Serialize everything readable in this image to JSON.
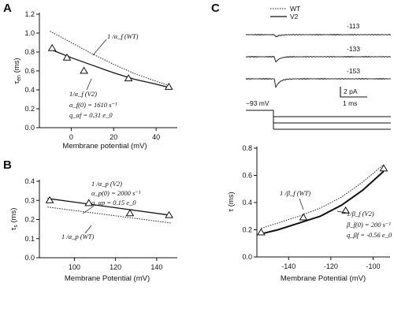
{
  "panels": {
    "A": {
      "letter": "A",
      "chart_data": {
        "type": "line",
        "xlabel": "Membrane potential (mV)",
        "ylabel": "τ_en (ms)",
        "ylabel_main": "τ",
        "ylabel_sub": "en",
        "ylabel_unit": " (ms)",
        "xlim": [
          -15,
          50
        ],
        "ylim": [
          0,
          1.2
        ],
        "xticks": [
          0,
          20,
          40
        ],
        "yticks": [
          0.0,
          0.2,
          0.4,
          0.6,
          0.8,
          1.0,
          1.2
        ],
        "ytick_labels": [
          "0.0",
          "0.2",
          "0.4",
          "0.6",
          "0.8",
          "1.0",
          "1.2"
        ],
        "series": [
          {
            "name": "1/α_f (WT)",
            "style": "dotted",
            "x": [
              -10,
              0,
              10,
              20,
              30,
              40,
              47
            ],
            "y": [
              1.02,
              0.9,
              0.78,
              0.67,
              0.57,
              0.49,
              0.44
            ]
          },
          {
            "name": "1/α_f (V2)",
            "style": "solid",
            "x": [
              -10,
              0,
              10,
              20,
              30,
              40,
              47
            ],
            "y": [
              0.83,
              0.74,
              0.66,
              0.58,
              0.51,
              0.46,
              0.42
            ]
          },
          {
            "name": "data",
            "style": "triangle",
            "x": [
              -9,
              -2,
              6,
              27,
              46
            ],
            "y": [
              0.84,
              0.74,
              0.6,
              0.52,
              0.43
            ]
          }
        ]
      },
      "annotations": {
        "wt": "1 /α_f (WT)",
        "v2": "1/α_f (V2)",
        "alpha0": "α_f(0) = 1610 s⁻¹",
        "q": "q_αf = 0.31 e_0"
      }
    },
    "B": {
      "letter": "B",
      "chart_data": {
        "type": "line",
        "xlabel": "Membrane Potential (mV)",
        "ylabel": "τ_s (ms)",
        "ylabel_main": "τ",
        "ylabel_sub": "s",
        "ylabel_unit": " (ms)",
        "xlim": [
          83,
          150
        ],
        "ylim": [
          0.0,
          0.4
        ],
        "xticks": [
          100,
          120,
          140
        ],
        "yticks": [
          0.0,
          0.1,
          0.2,
          0.3,
          0.4
        ],
        "ytick_labels": [
          "0.0",
          "0.1",
          "0.2",
          "0.3",
          "0.4"
        ],
        "series": [
          {
            "name": "1/α_p (V2)",
            "style": "solid",
            "x": [
              87,
              147
            ],
            "y": [
              0.31,
              0.222
            ]
          },
          {
            "name": "1/α_p (WT)",
            "style": "dotted",
            "x": [
              87,
              147
            ],
            "y": [
              0.265,
              0.182
            ]
          },
          {
            "name": "data",
            "style": "triangle",
            "x": [
              88,
              107,
              127,
              146
            ],
            "y": [
              0.3,
              0.285,
              0.232,
              0.222
            ]
          }
        ]
      },
      "annotations": {
        "v2": "1 /α_p (V2)",
        "alpha0": "α_p(0) = 2000 s⁻¹",
        "q": "q_αp = 0.15 e_0",
        "wt": "1 /α_p (WT)"
      }
    },
    "C": {
      "letter": "C",
      "legend": {
        "wt": "WT",
        "v2": "V2"
      },
      "traces": {
        "labels": [
          "-113",
          "-133",
          "-153"
        ],
        "scale_current": "2 pA",
        "scale_time": "1 ms",
        "holding": "−93 mV"
      },
      "chart_data": {
        "type": "line",
        "xlabel": "Membrane Potential (mV)",
        "ylabel": "τ (ms)",
        "xlim": [
          -155,
          -92
        ],
        "ylim": [
          0.0,
          0.8
        ],
        "xticks": [
          -140,
          -120,
          -100
        ],
        "yticks": [
          0.0,
          0.2,
          0.4,
          0.6,
          0.8
        ],
        "ytick_labels": [
          "0.0",
          "0.2",
          "0.4",
          "0.6",
          "0.8"
        ],
        "series": [
          {
            "name": "1/β_f (WT)",
            "style": "dotted",
            "x": [
              -153,
              -145,
              -135,
              -125,
              -115,
              -105,
              -95
            ],
            "y": [
              0.21,
              0.25,
              0.3,
              0.36,
              0.44,
              0.55,
              0.68
            ]
          },
          {
            "name": "1/β_f (V2)",
            "style": "solid",
            "x": [
              -153,
              -145,
              -135,
              -125,
              -115,
              -105,
              -95
            ],
            "y": [
              0.17,
              0.2,
              0.25,
              0.3,
              0.38,
              0.49,
              0.63
            ]
          },
          {
            "name": "data",
            "style": "triangle",
            "x": [
              -153,
              -133,
              -113,
              -95
            ],
            "y": [
              0.18,
              0.29,
              0.34,
              0.65
            ]
          }
        ]
      },
      "annotations": {
        "wt": "1 /β_f (WT)",
        "v2": "1/β_f (V2)",
        "beta0": "β_f(0) = 200 s⁻¹",
        "q": "q_βf = -0.56 e_0"
      }
    }
  }
}
